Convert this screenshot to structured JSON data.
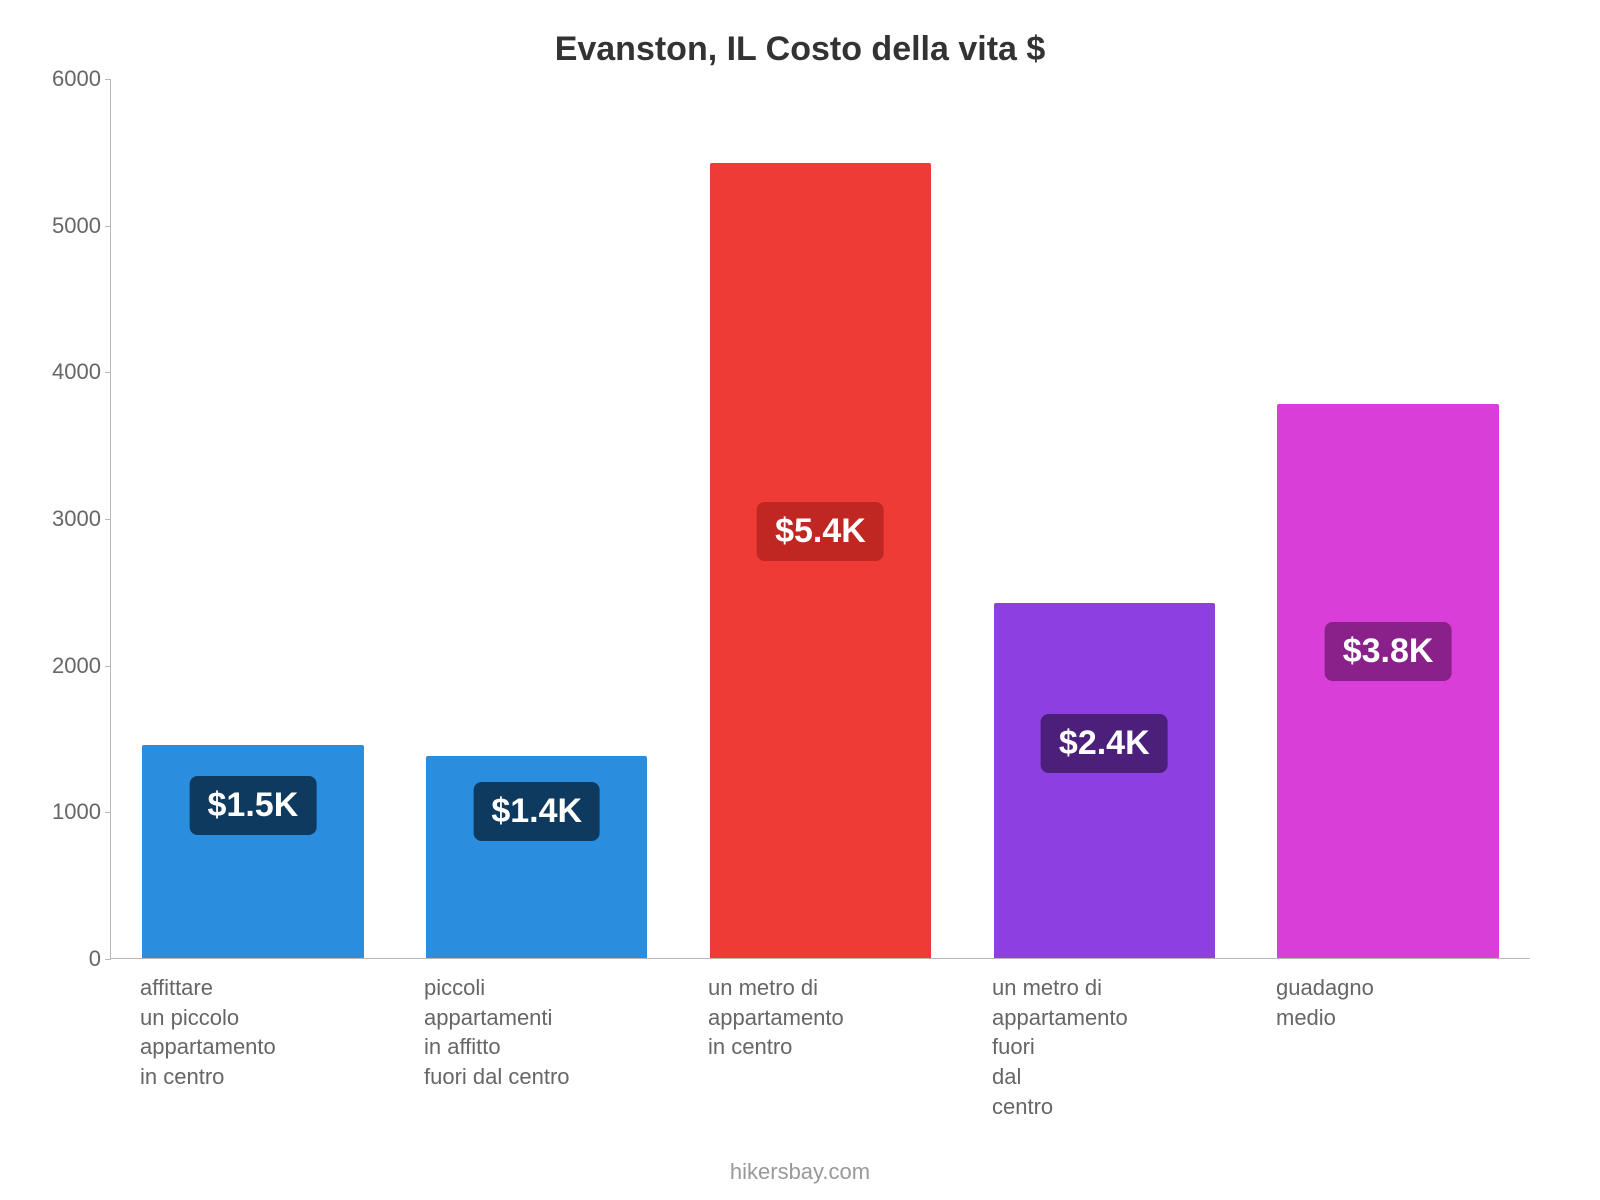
{
  "chart": {
    "type": "bar",
    "title": "Evanston, IL Costo della vita $",
    "title_fontsize": 34,
    "title_color": "#333333",
    "background_color": "#ffffff",
    "axis_color": "#b8b8b8",
    "ylim": [
      0,
      6000
    ],
    "ytick_step": 1000,
    "ytick_labels": [
      "0",
      "1000",
      "2000",
      "3000",
      "4000",
      "5000",
      "6000"
    ],
    "ytick_fontsize": 22,
    "ytick_color": "#666666",
    "xlabel_fontsize": 22,
    "xlabel_color": "#666666",
    "bar_width_pct": 78,
    "value_badge_fontsize": 34,
    "value_badge_radius": 8,
    "footer": "hikersbay.com",
    "footer_color": "#999999",
    "footer_fontsize": 22,
    "bars": [
      {
        "category": "affittare\nun piccolo\nappartamento\nin centro",
        "value": 1450,
        "display": "$1.5K",
        "bar_color": "#2a8ddd",
        "badge_color": "#0f3a5f"
      },
      {
        "category": "piccoli\nappartamenti\nin affitto\nfuori dal centro",
        "value": 1380,
        "display": "$1.4K",
        "bar_color": "#2a8ddd",
        "badge_color": "#0f3a5f"
      },
      {
        "category": "un metro di appartamento\nin centro",
        "value": 5420,
        "display": "$5.4K",
        "bar_color": "#ee3b36",
        "badge_color": "#c12722"
      },
      {
        "category": "un metro di appartamento\nfuori\ndal\ncentro",
        "value": 2420,
        "display": "$2.4K",
        "bar_color": "#8d3fe0",
        "badge_color": "#4b1f7a"
      },
      {
        "category": "guadagno\nmedio",
        "value": 3780,
        "display": "$3.8K",
        "bar_color": "#d93fd8",
        "badge_color": "#8a2089"
      }
    ]
  }
}
